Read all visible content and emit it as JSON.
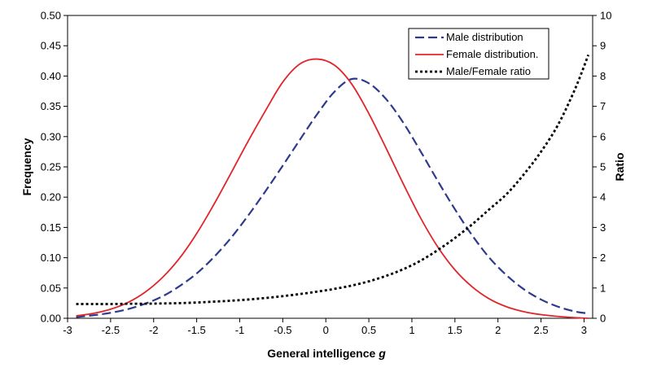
{
  "chart_data": {
    "type": "line",
    "title": "",
    "xlabel": "General intelligence",
    "xlabel_var": "g",
    "ylabel": "Frequency",
    "y2label": "Ratio",
    "xlim": [
      -3,
      3.1
    ],
    "ylim": [
      0,
      0.5
    ],
    "y2lim": [
      0,
      10
    ],
    "grid": false,
    "legend_position": "top-right",
    "x_ticks": [
      "-3",
      "-2.5",
      "-2",
      "-1.5",
      "-1",
      "-0.5",
      "0",
      "0.5",
      "1",
      "1.5",
      "2",
      "2.5",
      "3"
    ],
    "y_ticks": [
      "0.00",
      "0.05",
      "0.10",
      "0.15",
      "0.20",
      "0.25",
      "0.30",
      "0.35",
      "0.40",
      "0.45",
      "0.50"
    ],
    "y2_ticks": [
      "0",
      "1",
      "2",
      "3",
      "4",
      "5",
      "6",
      "7",
      "8",
      "9",
      "10"
    ],
    "x": [
      -2.9,
      -2.7,
      -2.5,
      -2.3,
      -2.1,
      -1.9,
      -1.7,
      -1.5,
      -1.3,
      -1.1,
      -0.9,
      -0.7,
      -0.5,
      -0.3,
      -0.1,
      0.1,
      0.3,
      0.5,
      0.7,
      0.9,
      1.1,
      1.3,
      1.5,
      1.7,
      1.9,
      2.1,
      2.3,
      2.5,
      2.7,
      2.9,
      3.05
    ],
    "series": [
      {
        "name": "Male distribution",
        "axis": "left",
        "color": "#2e3a8c",
        "style": "dashed",
        "values": [
          0.002,
          0.005,
          0.009,
          0.015,
          0.024,
          0.036,
          0.053,
          0.074,
          0.101,
          0.133,
          0.17,
          0.21,
          0.252,
          0.295,
          0.337,
          0.374,
          0.395,
          0.388,
          0.362,
          0.323,
          0.276,
          0.227,
          0.18,
          0.137,
          0.1,
          0.071,
          0.048,
          0.031,
          0.019,
          0.011,
          0.008
        ]
      },
      {
        "name": "Female distribution.",
        "axis": "left",
        "color": "#e0262b",
        "style": "solid",
        "values": [
          0.004,
          0.008,
          0.015,
          0.026,
          0.043,
          0.067,
          0.099,
          0.14,
          0.188,
          0.24,
          0.293,
          0.343,
          0.39,
          0.42,
          0.428,
          0.418,
          0.387,
          0.338,
          0.281,
          0.222,
          0.166,
          0.118,
          0.08,
          0.052,
          0.032,
          0.019,
          0.011,
          0.006,
          0.003,
          0.001,
          0.0
        ]
      },
      {
        "name": "Male/Female ratio",
        "axis": "right",
        "color": "#000000",
        "style": "dotted",
        "values": [
          0.47,
          0.47,
          0.47,
          0.48,
          0.48,
          0.49,
          0.5,
          0.52,
          0.55,
          0.58,
          0.62,
          0.67,
          0.73,
          0.8,
          0.88,
          0.97,
          1.08,
          1.22,
          1.4,
          1.62,
          1.9,
          2.25,
          2.65,
          3.1,
          3.6,
          4.1,
          4.75,
          5.5,
          6.4,
          7.6,
          8.7
        ]
      }
    ]
  }
}
